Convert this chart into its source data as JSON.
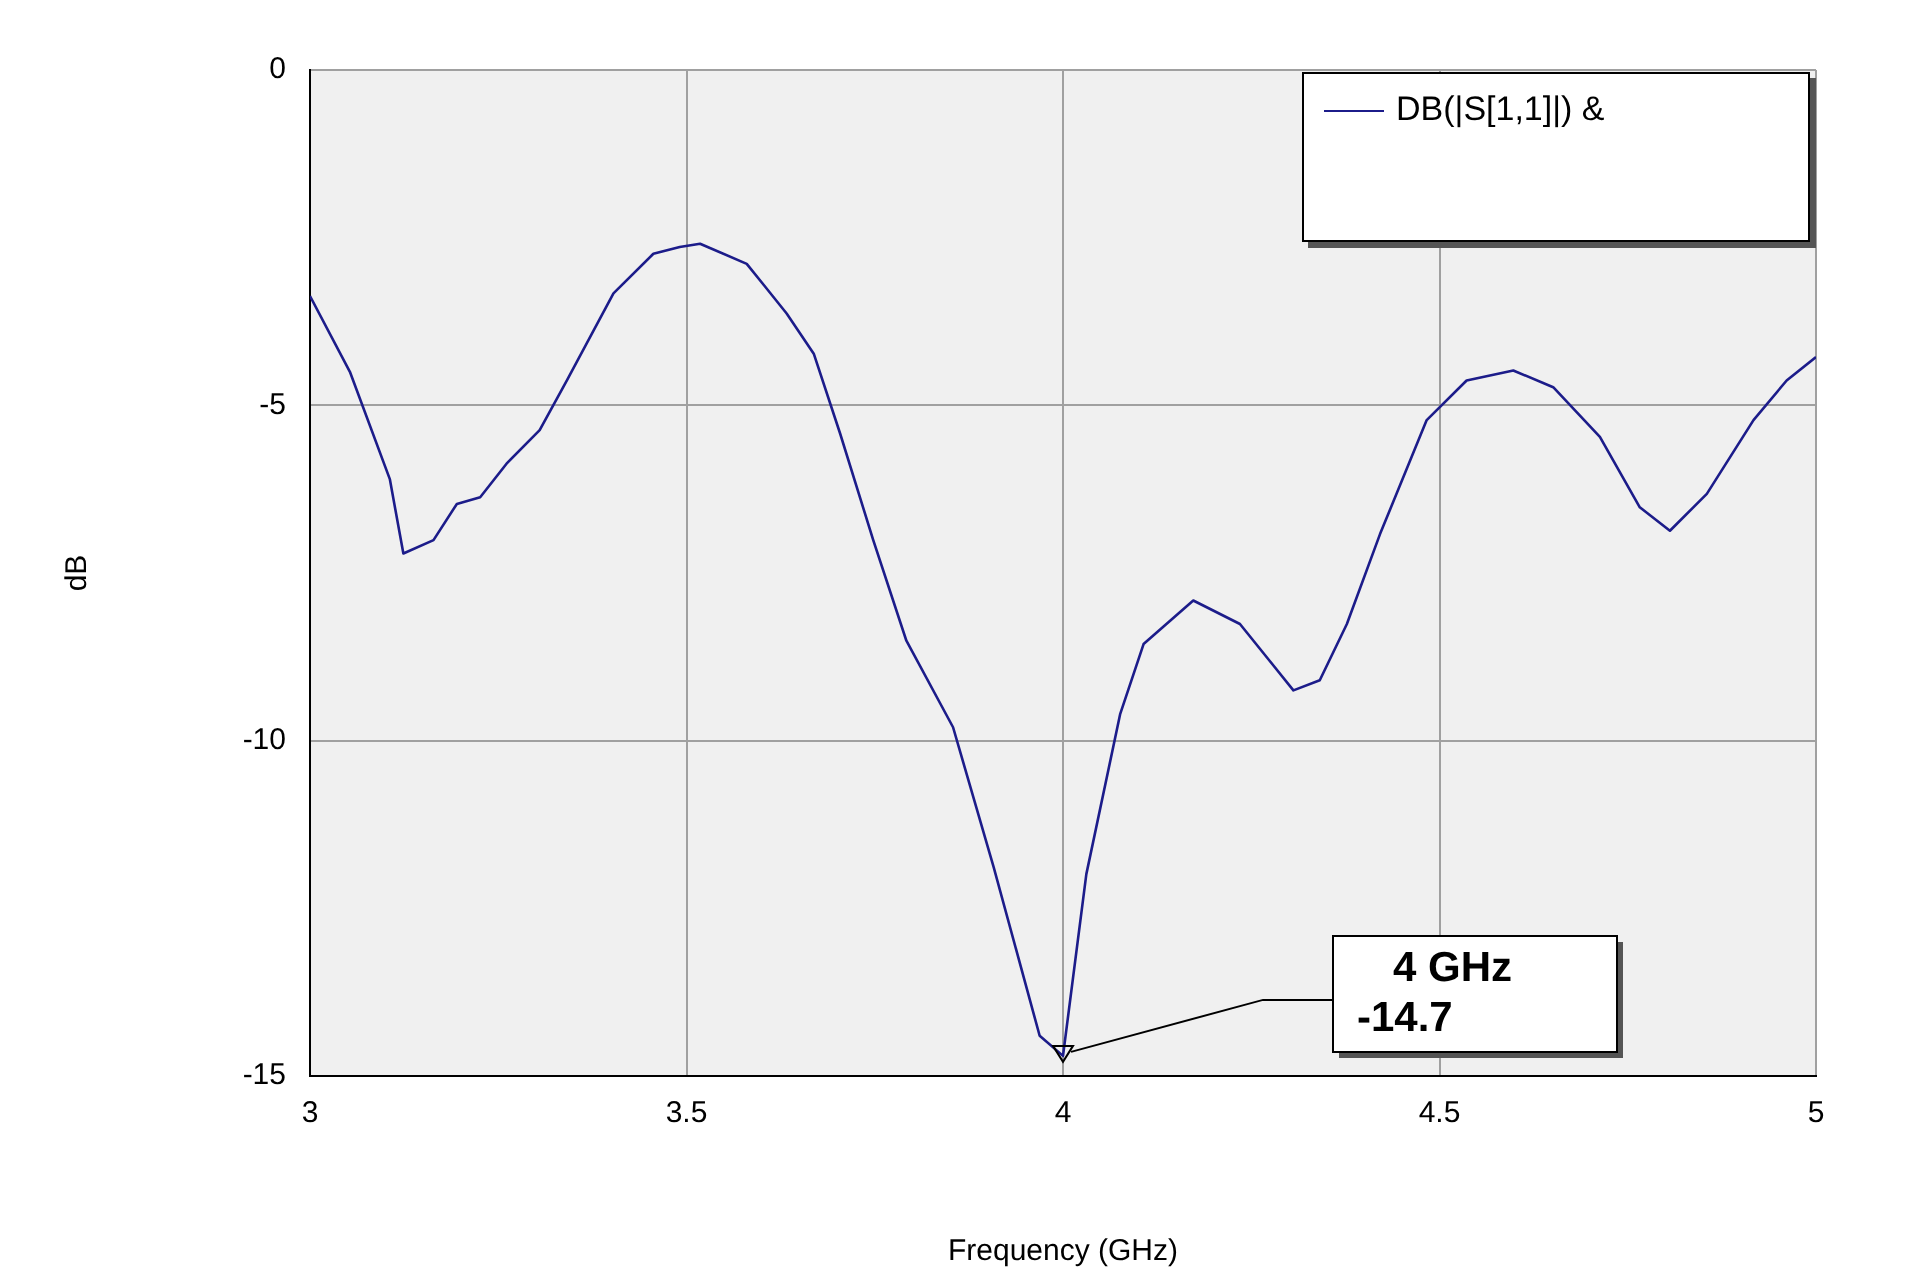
{
  "chart_data": {
    "type": "line",
    "xlabel": "Frequency (GHz)",
    "ylabel": "dB",
    "series": [
      {
        "name": "DB(|S[1,1]|) &",
        "color": "#1c1c8a",
        "x": [
          3.0,
          3.053,
          3.106,
          3.124,
          3.164,
          3.195,
          3.226,
          3.261,
          3.305,
          3.341,
          3.403,
          3.456,
          3.491,
          3.518,
          3.58,
          3.633,
          3.669,
          3.704,
          3.748,
          3.792,
          3.854,
          3.908,
          3.969,
          4.0,
          4.031,
          4.076,
          4.107,
          4.173,
          4.235,
          4.306,
          4.341,
          4.377,
          4.421,
          4.483,
          4.536,
          4.598,
          4.651,
          4.713,
          4.766,
          4.806,
          4.855,
          4.917,
          4.961,
          5.0
        ],
        "values": [
          -3.37,
          -4.5,
          -6.1,
          -7.21,
          -7.01,
          -6.47,
          -6.37,
          -5.87,
          -5.37,
          -4.63,
          -3.33,
          -2.74,
          -2.64,
          -2.59,
          -2.89,
          -3.63,
          -4.23,
          -5.42,
          -7.01,
          -8.51,
          -9.8,
          -11.89,
          -14.4,
          -14.7,
          -11.99,
          -9.6,
          -8.56,
          -7.91,
          -8.26,
          -9.25,
          -9.1,
          -8.26,
          -6.92,
          -5.22,
          -4.63,
          -4.48,
          -4.73,
          -5.47,
          -6.52,
          -6.87,
          -6.32,
          -5.22,
          -4.63,
          -4.28
        ]
      }
    ],
    "xlim": [
      3,
      5
    ],
    "xticks": [
      3,
      3.5,
      4,
      4.5,
      5
    ],
    "ylim": [
      -15,
      0
    ],
    "yticks": [
      -15,
      -10,
      -5,
      0
    ],
    "grid": true,
    "legend": "top right",
    "marker": "none",
    "line_style": "solid",
    "annotations": [
      {
        "text": "4 GHz\n-14.7",
        "x": 4,
        "y": -14.7
      }
    ]
  }
}
